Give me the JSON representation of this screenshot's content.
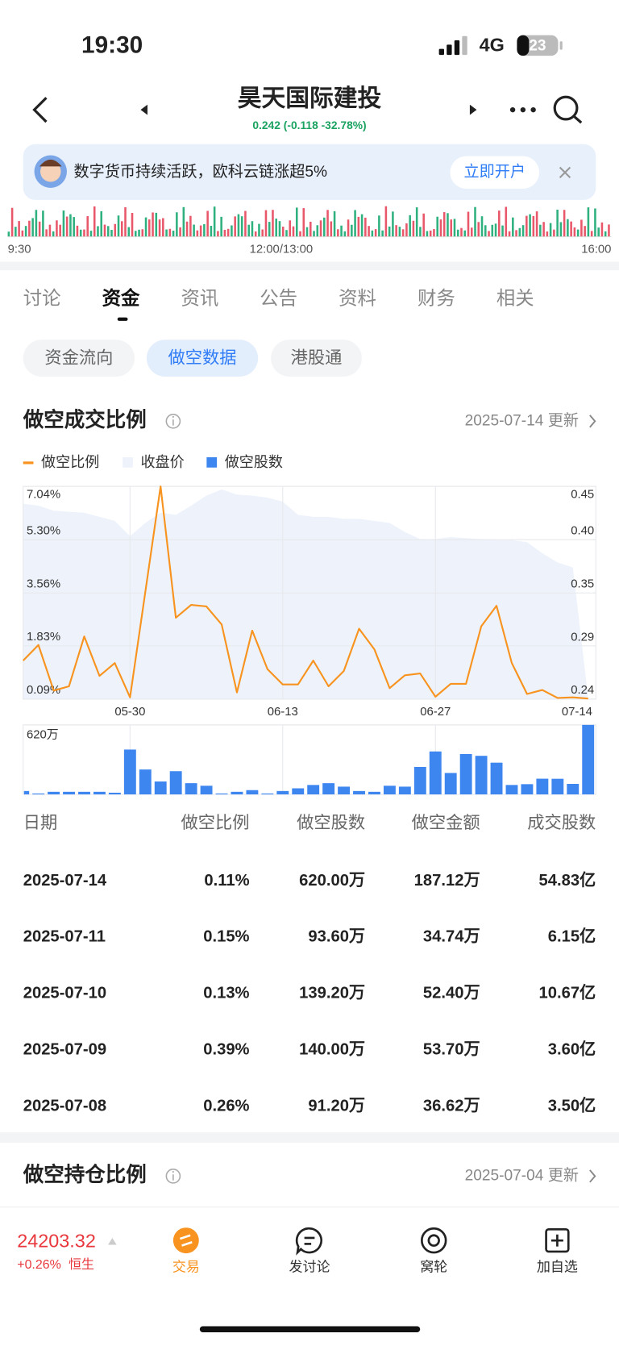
{
  "status_bar": {
    "time": "19:30",
    "network": "4G",
    "battery": "23"
  },
  "header": {
    "title": "昊天国际建投",
    "quote": "0.242 (-0.118 -32.78%)"
  },
  "banner": {
    "text": "数字货币持续活跃，欧科云链涨超5%",
    "button": "立即开户"
  },
  "intraday": {
    "labels": [
      "9:30",
      "12:00/13:00",
      "16:00"
    ]
  },
  "tabs": {
    "items": [
      "讨论",
      "资金",
      "资讯",
      "公告",
      "资料",
      "财务",
      "相关"
    ],
    "active": 1
  },
  "subtabs": {
    "items": [
      "资金流向",
      "做空数据",
      "港股通"
    ],
    "active": 1
  },
  "section1": {
    "title": "做空成交比例",
    "date": "2025-07-14 更新"
  },
  "chart_data": {
    "type": "line",
    "categories": [
      null,
      null,
      null,
      null,
      null,
      null,
      null,
      "05-30",
      null,
      null,
      null,
      null,
      null,
      null,
      null,
      null,
      null,
      "06-13",
      null,
      null,
      null,
      null,
      null,
      null,
      null,
      null,
      null,
      "06-27",
      null,
      null,
      null,
      null,
      null,
      null,
      null,
      null,
      null,
      "07-14"
    ],
    "series": [
      {
        "name": "做空比例",
        "color": "#f7931e",
        "type": "line",
        "values": [
          1.35,
          1.86,
          0.37,
          0.51,
          2.14,
          0.85,
          1.27,
          0.15,
          3.59,
          7.04,
          2.75,
          3.17,
          3.12,
          2.53,
          0.31,
          2.33,
          1.07,
          0.57,
          0.57,
          1.35,
          0.51,
          1.01,
          2.39,
          1.72,
          0.45,
          0.87,
          0.93,
          0.17,
          0.59,
          0.59,
          2.47,
          3.14,
          1.27,
          0.26,
          0.39,
          0.13,
          0.15,
          0.11
        ]
      },
      {
        "name": "收盘价",
        "color": "#eef3fb",
        "type": "area",
        "axis": "y2",
        "values": [
          0.433,
          0.431,
          0.426,
          0.425,
          0.424,
          0.42,
          0.416,
          0.401,
          0.414,
          0.424,
          0.422,
          0.431,
          0.441,
          0.447,
          0.442,
          0.441,
          0.439,
          0.435,
          0.422,
          0.42,
          0.42,
          0.418,
          0.418,
          0.416,
          0.414,
          0.405,
          0.398,
          0.398,
          0.4,
          0.399,
          0.398,
          0.397,
          0.397,
          0.395,
          0.384,
          0.375,
          0.37,
          0.242
        ]
      },
      {
        "name": "做空股数",
        "color": "#3d86f0",
        "type": "bar",
        "axis": "y3",
        "values": [
          30,
          8,
          23,
          23,
          23,
          23,
          15,
          400,
          222,
          115,
          207,
          100,
          77,
          8,
          23,
          38,
          8,
          30,
          54,
          84,
          100,
          69,
          30,
          23,
          77,
          69,
          245,
          383,
          191,
          360,
          344,
          283,
          84,
          91.2,
          140,
          139.2,
          93.6,
          620
        ]
      }
    ],
    "ylim": [
      0.09,
      7.04
    ],
    "yticks": [
      {
        "value": 7.04,
        "label": "7.04%"
      },
      {
        "value": 5.3,
        "label": "5.30%"
      },
      {
        "value": 3.56,
        "label": "3.56%"
      },
      {
        "value": 1.83,
        "label": "1.83%"
      },
      {
        "value": 0.09,
        "label": "0.09%"
      }
    ],
    "y2lim": [
      0.24,
      0.45
    ],
    "y2ticks": [
      0.45,
      {
        "value": 0.3975,
        "label": "0.40"
      },
      {
        "value": 0.345,
        "label": "0.35"
      },
      {
        "value": 0.2925,
        "label": "0.29"
      },
      0.24
    ],
    "y3lim": [
      0,
      620
    ],
    "y3ticks": [
      {
        "value": 620,
        "label": "620万"
      }
    ],
    "grid": true
  },
  "table": {
    "header": [
      "日期",
      "做空比例",
      "做空股数",
      "做空金额",
      "成交股数"
    ],
    "rows": [
      [
        "2025-07-14",
        "0.11%",
        "620.00万",
        "187.12万",
        "54.83亿"
      ],
      [
        "2025-07-11",
        "0.15%",
        "93.60万",
        "34.74万",
        "6.15亿"
      ],
      [
        "2025-07-10",
        "0.13%",
        "139.20万",
        "52.40万",
        "10.67亿"
      ],
      [
        "2025-07-09",
        "0.39%",
        "140.00万",
        "53.70万",
        "3.60亿"
      ],
      [
        "2025-07-08",
        "0.26%",
        "91.20万",
        "36.62万",
        "3.50亿"
      ]
    ]
  },
  "section2": {
    "title": "做空持仓比例",
    "date": "2025-07-04 更新"
  },
  "bottom_bar": {
    "index_value": "24203.32",
    "index_change": "+0.26%",
    "index_name": "恒生",
    "actions": [
      "交易",
      "发讨论",
      "窝轮",
      "加自选"
    ]
  }
}
